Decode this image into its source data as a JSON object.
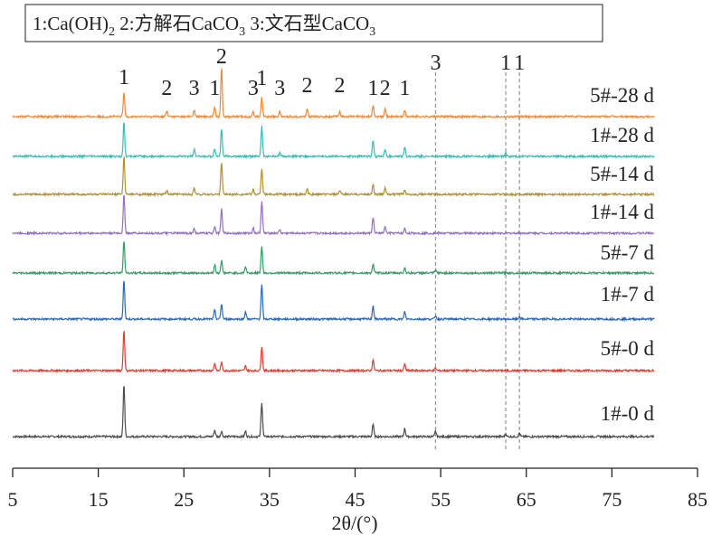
{
  "chart_data": {
    "type": "line",
    "legend_text": {
      "k1": "1:Ca(OH)",
      "s1": "2",
      "k2": " 2:方解石CaCO",
      "s2": "3",
      "k3": " 3:文石型CaCO",
      "s3": "3"
    },
    "xlabel": "2θ/(°)",
    "xlim": [
      5,
      85
    ],
    "x_ticks": [
      5,
      15,
      25,
      35,
      45,
      55,
      65,
      75,
      85
    ],
    "x_tick_labels": [
      "5",
      "15",
      "25",
      "35",
      "45",
      "55",
      "65",
      "75",
      "85"
    ],
    "x_range_data": [
      5,
      80
    ],
    "phase_markers": [
      {
        "label": "1",
        "x": 18.0
      },
      {
        "label": "2",
        "x": 23.0
      },
      {
        "label": "3",
        "x": 26.2
      },
      {
        "label": "1",
        "x": 28.6
      },
      {
        "label": "2",
        "x": 29.4
      },
      {
        "label": "3",
        "x": 33.1
      },
      {
        "label": "1",
        "x": 34.1
      },
      {
        "label": "3",
        "x": 36.2
      },
      {
        "label": "2",
        "x": 39.4
      },
      {
        "label": "2",
        "x": 43.2
      },
      {
        "label": "1",
        "x": 47.1
      },
      {
        "label": "2",
        "x": 48.5
      },
      {
        "label": "1",
        "x": 50.8
      },
      {
        "label": "3",
        "x": 54.4
      },
      {
        "label": "1",
        "x": 62.6
      },
      {
        "label": "1",
        "x": 64.2
      }
    ],
    "dashed_lines_x": [
      54.4,
      62.6,
      64.2
    ],
    "series": [
      {
        "name": "1#-0 d",
        "color": "#4d4d4d",
        "peaks": [
          [
            18.0,
            58
          ],
          [
            28.6,
            7
          ],
          [
            29.4,
            6
          ],
          [
            32.2,
            6
          ],
          [
            34.1,
            38
          ],
          [
            47.1,
            14
          ],
          [
            50.8,
            9
          ],
          [
            54.4,
            6
          ],
          [
            62.6,
            3
          ],
          [
            64.2,
            4
          ]
        ]
      },
      {
        "name": "5#-0 d",
        "color": "#e03c31",
        "peaks": [
          [
            18.0,
            45
          ],
          [
            28.6,
            8
          ],
          [
            29.4,
            9
          ],
          [
            32.2,
            5
          ],
          [
            34.1,
            27
          ],
          [
            47.1,
            12
          ],
          [
            50.8,
            7
          ],
          [
            54.4,
            3
          ]
        ]
      },
      {
        "name": "1#-7 d",
        "color": "#2f69b3",
        "peaks": [
          [
            18.0,
            44
          ],
          [
            28.6,
            10
          ],
          [
            29.4,
            17
          ],
          [
            32.2,
            8
          ],
          [
            34.1,
            38
          ],
          [
            47.1,
            15
          ],
          [
            50.8,
            8
          ],
          [
            54.4,
            4
          ],
          [
            64.2,
            3
          ]
        ]
      },
      {
        "name": "5#-7 d",
        "color": "#3a9a66",
        "peaks": [
          [
            18.0,
            35
          ],
          [
            28.6,
            9
          ],
          [
            29.4,
            14
          ],
          [
            32.2,
            7
          ],
          [
            34.1,
            30
          ],
          [
            47.1,
            10
          ],
          [
            50.8,
            6
          ],
          [
            54.4,
            3
          ]
        ]
      },
      {
        "name": "1#-14 d",
        "color": "#9370c0",
        "peaks": [
          [
            18.0,
            44
          ],
          [
            26.2,
            5
          ],
          [
            28.6,
            8
          ],
          [
            29.4,
            27
          ],
          [
            33.1,
            6
          ],
          [
            34.1,
            36
          ],
          [
            36.2,
            4
          ],
          [
            47.1,
            18
          ],
          [
            48.5,
            7
          ],
          [
            50.8,
            5
          ]
        ]
      },
      {
        "name": "5#-14 d",
        "color": "#b49030",
        "peaks": [
          [
            18.0,
            42
          ],
          [
            23.0,
            4
          ],
          [
            26.2,
            7
          ],
          [
            29.4,
            36
          ],
          [
            33.1,
            5
          ],
          [
            34.1,
            29
          ],
          [
            39.4,
            6
          ],
          [
            43.2,
            4
          ],
          [
            47.1,
            11
          ],
          [
            48.5,
            8
          ],
          [
            50.8,
            5
          ]
        ]
      },
      {
        "name": "1#-28 d",
        "color": "#3cbcb8",
        "peaks": [
          [
            18.0,
            38
          ],
          [
            26.2,
            8
          ],
          [
            28.6,
            9
          ],
          [
            29.4,
            31
          ],
          [
            34.1,
            33
          ],
          [
            36.2,
            4
          ],
          [
            47.1,
            18
          ],
          [
            48.5,
            8
          ],
          [
            50.8,
            10
          ],
          [
            62.6,
            4
          ]
        ]
      },
      {
        "name": "5#-28 d",
        "color": "#f0883a",
        "peaks": [
          [
            18.0,
            26
          ],
          [
            23.0,
            6
          ],
          [
            26.2,
            7
          ],
          [
            28.6,
            10
          ],
          [
            29.4,
            55
          ],
          [
            33.1,
            5
          ],
          [
            34.1,
            21
          ],
          [
            36.2,
            5
          ],
          [
            39.4,
            9
          ],
          [
            43.2,
            6
          ],
          [
            47.1,
            12
          ],
          [
            48.5,
            10
          ],
          [
            50.8,
            7
          ]
        ]
      }
    ]
  }
}
